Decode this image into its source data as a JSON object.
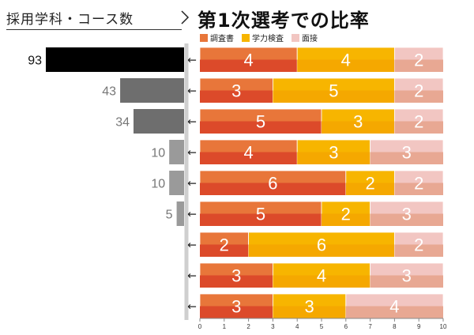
{
  "titles": {
    "left": "採用学科・コース数",
    "right": "第1次選考での比率"
  },
  "colors": {
    "chousasho": "#e8763a",
    "gakuryoku": "#f7b500",
    "mensetsu": "#f2c6c2",
    "count_dark": "#000000",
    "count_mid": "#6e6e6e",
    "count_light": "#9a9a9a"
  },
  "chart_data": [
    {
      "type": "bar",
      "orientation": "horizontal",
      "direction": "right-to-left",
      "title": "採用学科・コース数",
      "values": [
        93,
        43,
        34,
        10,
        10,
        5,
        null,
        null,
        null
      ],
      "labels": [
        "93",
        "43",
        "34",
        "10",
        "10",
        "5",
        "",
        "",
        ""
      ]
    },
    {
      "type": "bar",
      "orientation": "horizontal",
      "stacked": true,
      "title": "第1次選考での比率",
      "legend": [
        "調査書",
        "学力検査",
        "面接"
      ],
      "legend_position": "top-left",
      "series": [
        {
          "name": "調査書",
          "values": [
            4,
            3,
            5,
            4,
            6,
            5,
            2,
            3,
            3
          ]
        },
        {
          "name": "学力検査",
          "values": [
            4,
            5,
            3,
            3,
            2,
            2,
            6,
            4,
            3
          ]
        },
        {
          "name": "面接",
          "values": [
            2,
            2,
            2,
            3,
            2,
            3,
            2,
            3,
            4
          ]
        }
      ],
      "xlim": [
        0,
        10
      ],
      "xticks": [
        "0",
        "1",
        "2",
        "3",
        "4",
        "5",
        "6",
        "7",
        "8",
        "9",
        "10"
      ],
      "grid": false,
      "connector": "←"
    }
  ]
}
